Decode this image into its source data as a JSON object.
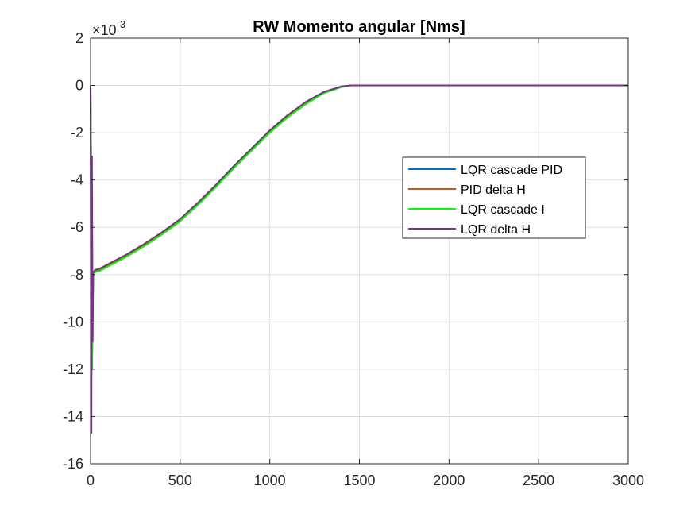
{
  "chart_data": {
    "type": "line",
    "title": "RW Momento angular [Nms]",
    "xlabel": "",
    "ylabel": "",
    "xlim": [
      0,
      3000
    ],
    "ylim": [
      -16,
      2
    ],
    "y_exponent": "×10",
    "y_exponent_power": "-3",
    "x_ticks": [
      "0",
      "500",
      "1000",
      "1500",
      "2000",
      "2500",
      "3000"
    ],
    "y_ticks": [
      "2",
      "0",
      "-2",
      "-4",
      "-6",
      "-8",
      "-10",
      "-12",
      "-14",
      "-16"
    ],
    "grid": true,
    "legend_position": "center-right",
    "series": [
      {
        "name": "LQR cascade PID",
        "color": "#0072BD",
        "x": [
          0,
          3,
          8,
          15,
          25,
          50,
          100,
          200,
          300,
          400,
          500,
          600,
          700,
          800,
          900,
          1000,
          1100,
          1200,
          1300,
          1400,
          1450,
          1500,
          2000,
          2500,
          3000
        ],
        "y": [
          0,
          -3,
          -12,
          -7.9,
          -7.85,
          -7.8,
          -7.6,
          -7.2,
          -6.75,
          -6.25,
          -5.7,
          -5.0,
          -4.25,
          -3.45,
          -2.7,
          -1.95,
          -1.3,
          -0.75,
          -0.3,
          -0.05,
          0,
          0,
          0,
          0,
          0
        ]
      },
      {
        "name": "PID delta H",
        "color": "#D95319",
        "x": [
          0,
          3,
          8,
          15,
          25,
          50,
          100,
          200,
          300,
          400,
          500,
          600,
          700,
          800,
          900,
          1000,
          1100,
          1200,
          1300,
          1400,
          1450,
          1500,
          2000,
          2500,
          3000
        ],
        "y": [
          0,
          -3,
          -12,
          -7.9,
          -7.85,
          -7.8,
          -7.6,
          -7.2,
          -6.75,
          -6.25,
          -5.7,
          -5.0,
          -4.25,
          -3.45,
          -2.7,
          -1.95,
          -1.3,
          -0.75,
          -0.3,
          -0.05,
          0,
          0,
          0,
          0,
          0
        ]
      },
      {
        "name": "LQR cascade I",
        "color": "#00FF00",
        "x": [
          0,
          3,
          8,
          15,
          25,
          50,
          100,
          200,
          300,
          400,
          500,
          600,
          700,
          800,
          900,
          1000,
          1100,
          1200,
          1300,
          1400,
          1450,
          1500,
          2000,
          2500,
          3000
        ],
        "y": [
          0,
          -3,
          -12,
          -7.95,
          -7.9,
          -7.85,
          -7.65,
          -7.25,
          -6.8,
          -6.3,
          -5.75,
          -5.05,
          -4.3,
          -3.5,
          -2.75,
          -2.0,
          -1.35,
          -0.8,
          -0.33,
          -0.07,
          0,
          0,
          0,
          0,
          0
        ]
      },
      {
        "name": "LQR delta H",
        "color": "#7E2F8E",
        "x": [
          0,
          2,
          5,
          8,
          12,
          15,
          20,
          25,
          50,
          100,
          200,
          300,
          400,
          500,
          600,
          700,
          800,
          900,
          1000,
          1100,
          1200,
          1300,
          1400,
          1450,
          1500,
          2000,
          2500,
          3000
        ],
        "y": [
          0,
          -7,
          -14.7,
          -3.0,
          -10.8,
          -7.9,
          -7.85,
          -7.8,
          -7.75,
          -7.55,
          -7.15,
          -6.7,
          -6.2,
          -5.65,
          -4.95,
          -4.2,
          -3.4,
          -2.65,
          -1.9,
          -1.25,
          -0.7,
          -0.28,
          -0.04,
          0,
          0,
          0,
          0,
          0
        ]
      }
    ]
  }
}
